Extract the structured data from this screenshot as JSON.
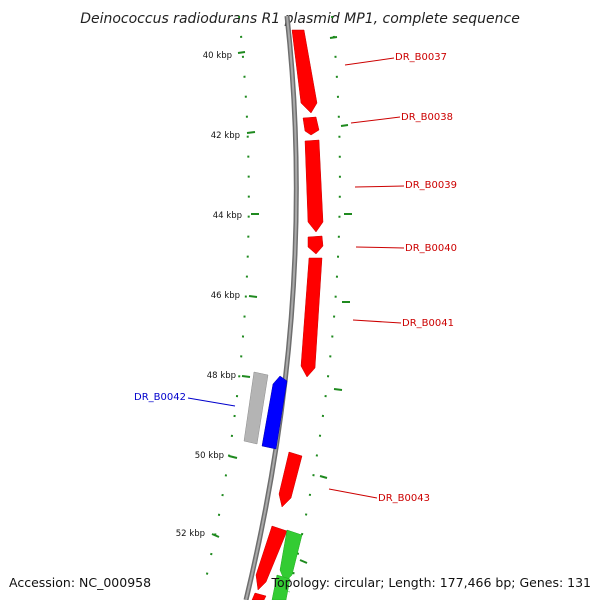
{
  "title": "Deinococcus radiodurans R1 plasmid MP1, complete sequence",
  "footer": {
    "accession": "Accession: NC_000958",
    "summary": "Topology: circular; Length: 177,466 bp; Genes: 131"
  },
  "colors": {
    "backbone": "#808080",
    "tick": "#1f8a1f",
    "forward_gene": "#ff0000",
    "reverse_gene": "#0000ff",
    "grey_feature": "#b4b4b4",
    "green_feature": "#33cc33",
    "forward_label": "#cc0000",
    "reverse_label": "#0000cc"
  },
  "ticks": [
    {
      "label": "40 kbp"
    },
    {
      "label": "42 kbp"
    },
    {
      "label": "44 kbp"
    },
    {
      "label": "46 kbp"
    },
    {
      "label": "48 kbp"
    },
    {
      "label": "50 kbp"
    },
    {
      "label": "52 kbp"
    }
  ],
  "genes": [
    {
      "name": "DR_B0037",
      "strand": "forward"
    },
    {
      "name": "DR_B0038",
      "strand": "forward"
    },
    {
      "name": "DR_B0039",
      "strand": "forward"
    },
    {
      "name": "DR_B0040",
      "strand": "forward"
    },
    {
      "name": "DR_B0041",
      "strand": "forward"
    },
    {
      "name": "DR_B0042",
      "strand": "reverse"
    },
    {
      "name": "DR_B0043",
      "strand": "forward"
    }
  ]
}
